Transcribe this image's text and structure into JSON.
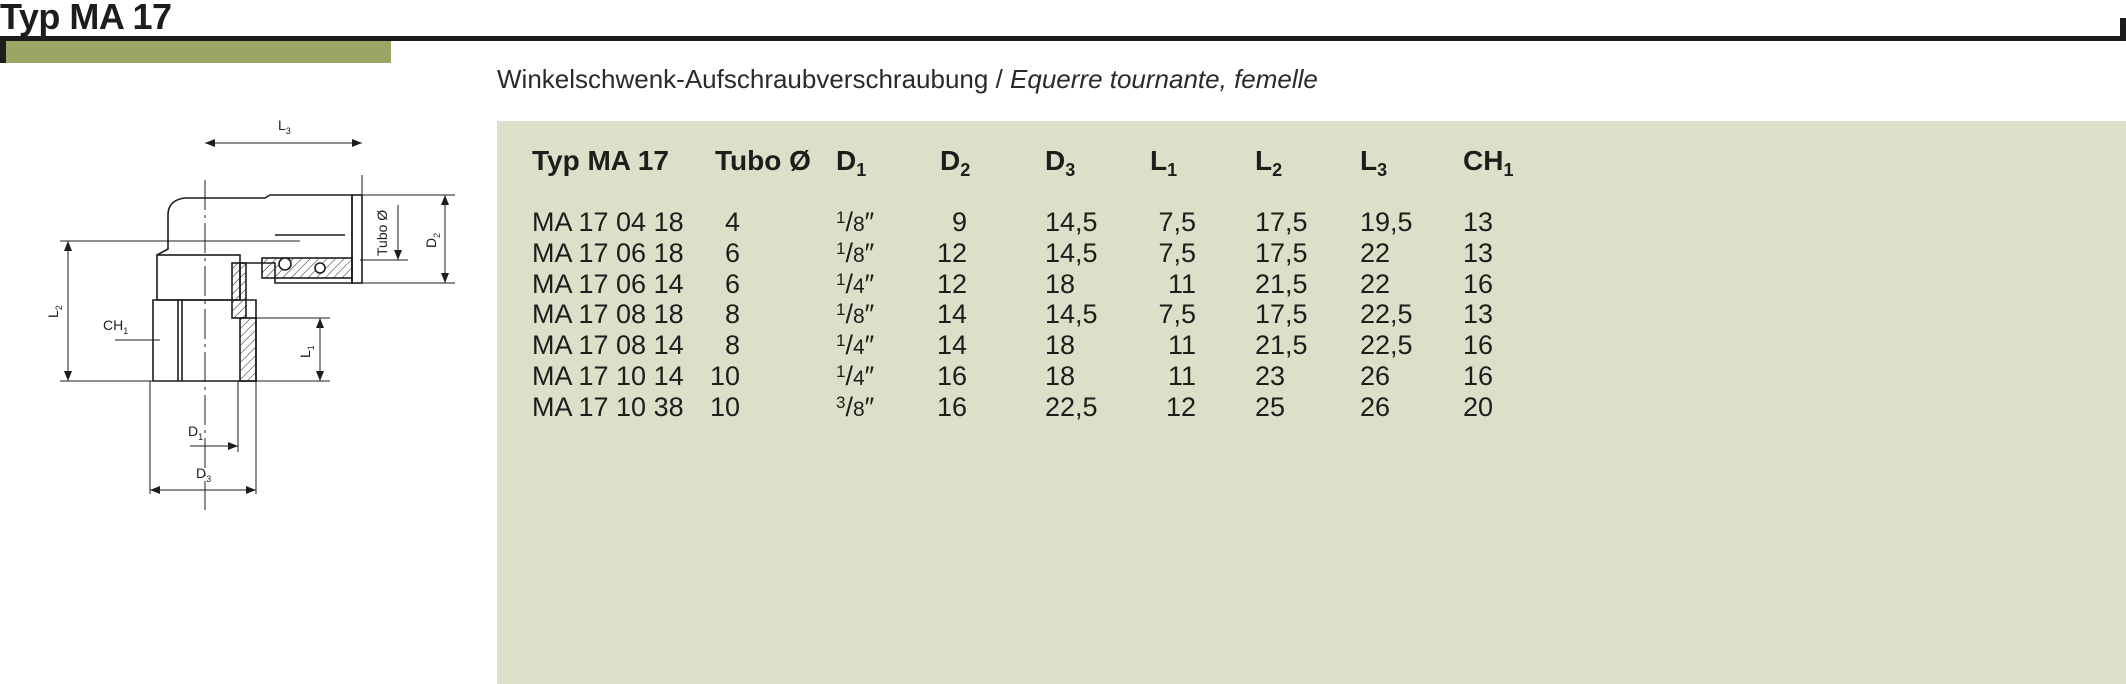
{
  "header": {
    "title": "Typ MA 17",
    "subtitle_de": "Winkelschwenk-Aufschraubverschraubung / ",
    "subtitle_fr": "Equerre tournante, femelle",
    "colors": {
      "accent_bar": "#9ca664",
      "table_bg": "#dce0c8",
      "rule": "#1d1d1b"
    }
  },
  "drawing": {
    "labels": {
      "L3": "L",
      "L3_sub": "3",
      "D2": "D",
      "D2_sub": "2",
      "tubo": "Tubo Ø",
      "L2": "L",
      "L2_sub": "2",
      "CH1": "CH",
      "CH1_sub": "1",
      "L1": "L",
      "L1_sub": "1",
      "D1": "D",
      "D1_sub": "1",
      "D3": "D",
      "D3_sub": "3"
    }
  },
  "table": {
    "headers": [
      {
        "main": "Typ MA 17",
        "sub": ""
      },
      {
        "main": "Tubo Ø",
        "sub": ""
      },
      {
        "main": "D",
        "sub": "1"
      },
      {
        "main": "D",
        "sub": "2"
      },
      {
        "main": "D",
        "sub": "3"
      },
      {
        "main": "L",
        "sub": "1"
      },
      {
        "main": "L",
        "sub": "2"
      },
      {
        "main": "L",
        "sub": "3"
      },
      {
        "main": "CH",
        "sub": "1"
      }
    ],
    "rows": [
      {
        "typ": "MA 17 04 18",
        "tubo": "4",
        "d1_num": "1",
        "d1_den": "8",
        "d2": "9",
        "d3": "14,5",
        "l1": "7,5",
        "l2": "17,5",
        "l3": "19,5",
        "ch1": "13"
      },
      {
        "typ": "MA 17 06 18",
        "tubo": "6",
        "d1_num": "1",
        "d1_den": "8",
        "d2": "12",
        "d3": "14,5",
        "l1": "7,5",
        "l2": "17,5",
        "l3": "22",
        "ch1": "13"
      },
      {
        "typ": "MA 17 06 14",
        "tubo": "6",
        "d1_num": "1",
        "d1_den": "4",
        "d2": "12",
        "d3": "18",
        "l1": "11",
        "l2": "21,5",
        "l3": "22",
        "ch1": "16"
      },
      {
        "typ": "MA 17 08 18",
        "tubo": "8",
        "d1_num": "1",
        "d1_den": "8",
        "d2": "14",
        "d3": "14,5",
        "l1": "7,5",
        "l2": "17,5",
        "l3": "22,5",
        "ch1": "13"
      },
      {
        "typ": "MA 17 08 14",
        "tubo": "8",
        "d1_num": "1",
        "d1_den": "4",
        "d2": "14",
        "d3": "18",
        "l1": "11",
        "l2": "21,5",
        "l3": "22,5",
        "ch1": "16"
      },
      {
        "typ": "MA 17 10 14",
        "tubo": "10",
        "d1_num": "1",
        "d1_den": "4",
        "d2": "16",
        "d3": "18",
        "l1": "11",
        "l2": "23",
        "l3": "26",
        "ch1": "16"
      },
      {
        "typ": "MA 17 10 38",
        "tubo": "10",
        "d1_num": "3",
        "d1_den": "8",
        "d2": "16",
        "d3": "22,5",
        "l1": "12",
        "l2": "25",
        "l3": "26",
        "ch1": "20"
      }
    ]
  }
}
